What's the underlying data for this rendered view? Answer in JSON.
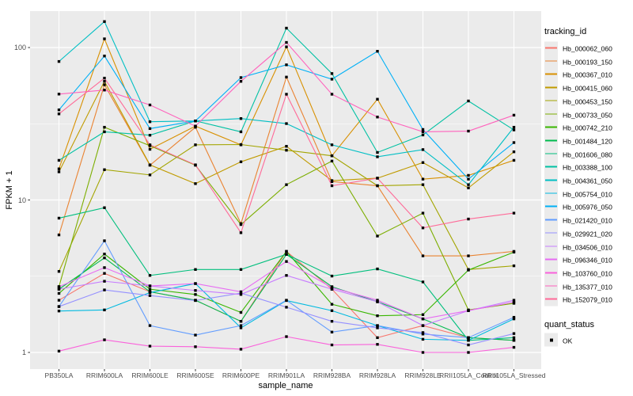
{
  "figure": {
    "panel_bg": "#ebebeb",
    "grid_color": "#ffffff",
    "axis_text_color": "#4d4d4d",
    "tick_color": "#333333",
    "marker_color": "#000000"
  },
  "chart_data": {
    "type": "line",
    "xlabel": "sample_name",
    "ylabel": "FPKM + 1",
    "y_scale": "log10",
    "y_ticks": [
      1,
      10,
      100
    ],
    "y_tick_labels": [
      "1",
      "10",
      "100"
    ],
    "y_minor_ticks": [
      3.162,
      31.62
    ],
    "ylim": [
      0.78,
      173
    ],
    "grid": true,
    "legend_position": "right",
    "marker_shape": "filled-square",
    "categories": [
      "PB350LA",
      "RRIM600LA",
      "RRIM600LE",
      "RRIM600SE",
      "RRIM600PE",
      "RRIM901LA",
      "RRIM928BA",
      "RRIM928LA",
      "RRIM928LE",
      "RRII105LA_Control",
      "RRII105LA_Stressed"
    ],
    "legend_title": "tracking_id",
    "quant_legend": {
      "title": "quant_status",
      "label": "OK"
    },
    "series": [
      {
        "name": "Hb_000062_060",
        "color": "#F8766D",
        "values": [
          2.2,
          3.3,
          2.5,
          2.2,
          1.6,
          4.6,
          2.6,
          1.25,
          1.5,
          1.25,
          1.2
        ]
      },
      {
        "name": "Hb_000193_150",
        "color": "#EA8331",
        "values": [
          5.9,
          57,
          16.9,
          30,
          7.0,
          64,
          13.2,
          12.4,
          4.3,
          4.3,
          4.6
        ]
      },
      {
        "name": "Hb_000367_010",
        "color": "#D89000",
        "values": [
          16,
          114,
          21.5,
          30.5,
          23,
          101,
          19.5,
          45.8,
          13.7,
          14.5,
          18.2
        ]
      },
      {
        "name": "Hb_000415_060",
        "color": "#C09B00",
        "values": [
          15.3,
          60,
          17,
          12.8,
          17.8,
          22.5,
          13.4,
          13.9,
          17.6,
          12,
          20.7
        ]
      },
      {
        "name": "Hb_000453_150",
        "color": "#A3A500",
        "values": [
          3.4,
          15.8,
          14.6,
          23,
          23.1,
          21.2,
          19.5,
          12.4,
          12.6,
          3.5,
          3.7
        ]
      },
      {
        "name": "Hb_000733_050",
        "color": "#7CAE00",
        "values": [
          2.7,
          30,
          22.7,
          16.9,
          6.9,
          12.6,
          18,
          5.8,
          8.2,
          1.9,
          2.1
        ]
      },
      {
        "name": "Hb_000742_210",
        "color": "#39B600",
        "values": [
          2.44,
          4.42,
          2.6,
          2.4,
          1.83,
          4.6,
          2.07,
          1.74,
          1.77,
          3.47,
          4.55
        ]
      },
      {
        "name": "Hb_001484_120",
        "color": "#00BB4E",
        "values": [
          2.6,
          4.17,
          2.5,
          2.2,
          1.6,
          4.4,
          2.7,
          2.15,
          1.66,
          1.25,
          1.2
        ]
      },
      {
        "name": "Hb_001606_080",
        "color": "#00BF7D",
        "values": [
          7.6,
          8.9,
          3.2,
          3.5,
          3.5,
          4.4,
          3.17,
          3.53,
          2.9,
          1.2,
          1.25
        ]
      },
      {
        "name": "Hb_003388_100",
        "color": "#00C1A3",
        "values": [
          18.2,
          28,
          26.6,
          33,
          28,
          134,
          67.5,
          20.5,
          26.7,
          44.6,
          28.8
        ]
      },
      {
        "name": "Hb_004361_050",
        "color": "#00BFC4",
        "values": [
          81,
          148,
          32.6,
          33,
          34.2,
          31.7,
          23,
          19.2,
          21.4,
          12.6,
          30
        ]
      },
      {
        "name": "Hb_005754_010",
        "color": "#00BAE0",
        "values": [
          1.87,
          1.9,
          2.47,
          2.83,
          1.45,
          2.19,
          1.88,
          1.5,
          1.22,
          1.2,
          1.66
        ]
      },
      {
        "name": "Hb_005976_050",
        "color": "#00B0F6",
        "values": [
          39,
          88,
          29.4,
          33,
          63.5,
          77,
          62,
          94.5,
          29,
          13.7,
          23.8
        ]
      },
      {
        "name": "Hb_021420_010",
        "color": "#619CFF",
        "values": [
          2.0,
          5.4,
          1.5,
          1.3,
          1.5,
          2.2,
          1.36,
          1.5,
          1.32,
          1.25,
          1.7
        ]
      },
      {
        "name": "Hb_029921_020",
        "color": "#9590FF",
        "values": [
          2.0,
          2.57,
          2.36,
          2.19,
          2.45,
          1.98,
          1.6,
          1.45,
          1.35,
          1.12,
          1.33
        ]
      },
      {
        "name": "Hb_034506_010",
        "color": "#C77CFF",
        "values": [
          2.6,
          2.93,
          2.73,
          2.55,
          2.4,
          3.2,
          2.6,
          2.15,
          1.5,
          1.88,
          2.2
        ]
      },
      {
        "name": "Hb_096346_010",
        "color": "#E76BF3",
        "values": [
          2.7,
          3.6,
          2.73,
          2.83,
          2.5,
          3.95,
          2.66,
          2.2,
          1.66,
          1.88,
          2.14
        ]
      },
      {
        "name": "Hb_103760_010",
        "color": "#FA62DB",
        "values": [
          1.02,
          1.21,
          1.1,
          1.09,
          1.05,
          1.27,
          1.12,
          1.13,
          1.0,
          1.0,
          1.08
        ]
      },
      {
        "name": "Hb_135377_010",
        "color": "#FF62BC",
        "values": [
          49.5,
          52.6,
          42,
          30.5,
          60,
          108,
          49.4,
          35,
          28,
          28.3,
          36
        ]
      },
      {
        "name": "Hb_152079_010",
        "color": "#FF6A98",
        "values": [
          36.7,
          63,
          23,
          17,
          6.1,
          49.4,
          12.4,
          13.9,
          6.56,
          7.5,
          8.2
        ]
      }
    ]
  }
}
